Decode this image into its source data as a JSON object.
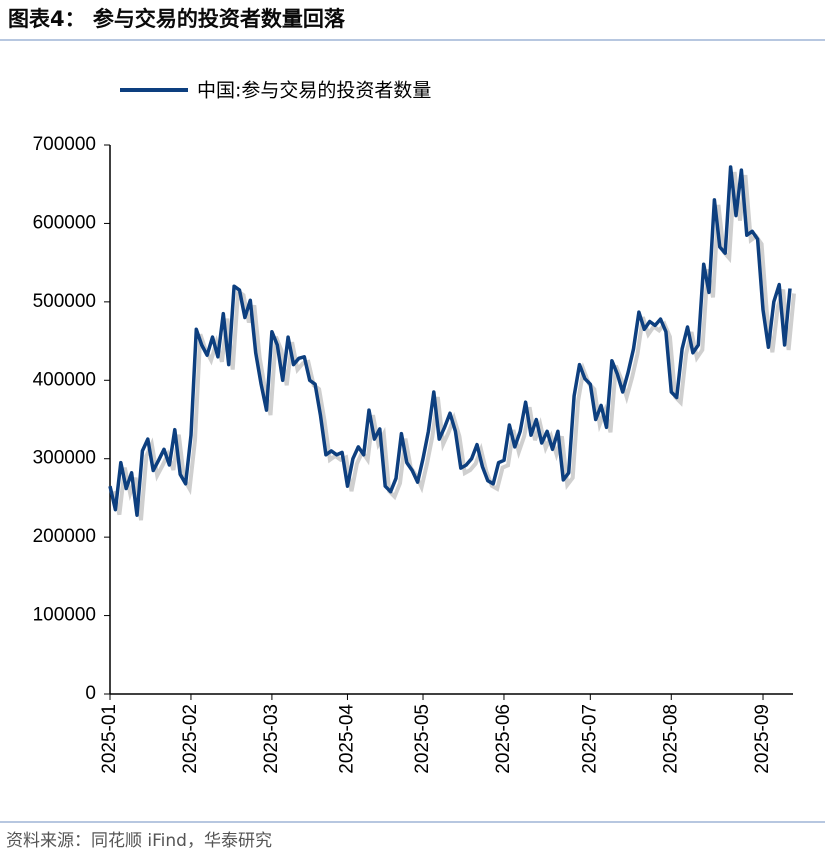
{
  "chart_data": {
    "type": "line",
    "title": "图表4：  参与交易的投资者数量回落",
    "source": "资料来源：同花顺 iFind，华泰研究",
    "categories": [
      "2025-01",
      null,
      null,
      null,
      null,
      null,
      null,
      null,
      null,
      null,
      null,
      null,
      null,
      null,
      null,
      "2025-02",
      null,
      null,
      null,
      null,
      null,
      null,
      null,
      null,
      null,
      null,
      null,
      null,
      null,
      null,
      "2025-03",
      null,
      null,
      null,
      null,
      null,
      null,
      null,
      null,
      null,
      null,
      null,
      null,
      null,
      "2025-04",
      null,
      null,
      null,
      null,
      null,
      null,
      null,
      null,
      null,
      null,
      null,
      null,
      null,
      "2025-05",
      null,
      null,
      null,
      null,
      null,
      null,
      null,
      null,
      null,
      null,
      null,
      null,
      null,
      null,
      "2025-06",
      null,
      null,
      null,
      null,
      null,
      null,
      null,
      null,
      null,
      null,
      null,
      null,
      null,
      null,
      null,
      "2025-07",
      null,
      null,
      null,
      null,
      null,
      null,
      null,
      null,
      null,
      null,
      null,
      null,
      null,
      null,
      "2025-08",
      null,
      null,
      null,
      null,
      null,
      null,
      null,
      null,
      null,
      null,
      null,
      null,
      null,
      null,
      null,
      null,
      "2025-09",
      null,
      null,
      null,
      null,
      null
    ],
    "series": [
      {
        "name": "中国:参与交易的投资者数量",
        "color": "#0d3f7f",
        "values": [
          265000,
          235000,
          295000,
          262000,
          282000,
          228000,
          310000,
          325000,
          285000,
          298000,
          312000,
          292000,
          337000,
          280000,
          268000,
          330000,
          465000,
          445000,
          432000,
          455000,
          430000,
          485000,
          420000,
          520000,
          515000,
          480000,
          502000,
          435000,
          395000,
          362000,
          462000,
          445000,
          400000,
          455000,
          420000,
          428000,
          430000,
          400000,
          395000,
          355000,
          305000,
          310000,
          305000,
          308000,
          265000,
          300000,
          315000,
          305000,
          362000,
          325000,
          338000,
          265000,
          258000,
          275000,
          332000,
          295000,
          285000,
          270000,
          300000,
          335000,
          385000,
          325000,
          340000,
          358000,
          335000,
          288000,
          292000,
          300000,
          318000,
          290000,
          272000,
          268000,
          295000,
          298000,
          343000,
          315000,
          335000,
          372000,
          330000,
          350000,
          320000,
          335000,
          312000,
          335000,
          273000,
          282000,
          380000,
          420000,
          402000,
          395000,
          350000,
          368000,
          340000,
          425000,
          408000,
          385000,
          410000,
          440000,
          487000,
          465000,
          475000,
          470000,
          478000,
          462000,
          385000,
          378000,
          440000,
          468000,
          435000,
          445000,
          548000,
          512000,
          630000,
          570000,
          562000,
          672000,
          610000,
          668000,
          585000,
          590000,
          580000,
          490000,
          442000,
          500000,
          522000,
          445000,
          517000
        ]
      }
    ],
    "ylim": [
      0,
      700000
    ],
    "yticks": [
      0,
      100000,
      200000,
      300000,
      400000,
      500000,
      600000,
      700000
    ],
    "grid": false
  }
}
